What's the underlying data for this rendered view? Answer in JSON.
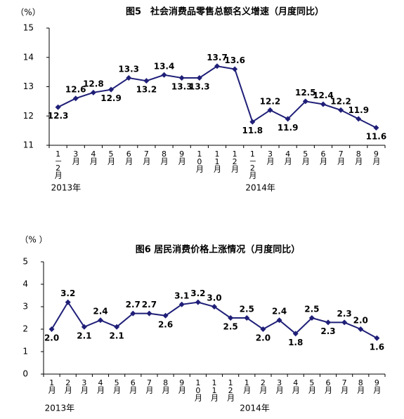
{
  "chart_data": [
    {
      "type": "line",
      "title": "图5　社会消费品零售总额名义增速（月度同比）",
      "y_unit": "（%）",
      "categories": [
        "1－2月",
        "3月",
        "4月",
        "5月",
        "6月",
        "7月",
        "8月",
        "9月",
        "10月",
        "11月",
        "12月",
        "1－2月",
        "3月",
        "4月",
        "5月",
        "6月",
        "7月",
        "8月",
        "9月"
      ],
      "year_labels": [
        "2013年",
        "2014年"
      ],
      "values": [
        12.3,
        12.6,
        12.8,
        12.9,
        13.3,
        13.2,
        13.4,
        13.3,
        13.3,
        13.7,
        13.6,
        11.8,
        12.2,
        11.9,
        12.5,
        12.4,
        12.2,
        11.9,
        11.6
      ],
      "color": "#1f1f78",
      "ylim": [
        11,
        15
      ],
      "yticks": [
        11,
        12,
        13,
        14,
        15
      ]
    },
    {
      "type": "line",
      "title": "图6 居民消费价格上涨情况（月度同比）",
      "y_unit": "（% ）",
      "categories": [
        "1月",
        "2月",
        "3月",
        "4月",
        "5月",
        "6月",
        "7月",
        "8月",
        "9月",
        "10月",
        "11月",
        "12月",
        "1月",
        "2月",
        "3月",
        "4月",
        "5月",
        "6月",
        "7月",
        "8月",
        "9月"
      ],
      "year_labels": [
        "2013年",
        "2014年"
      ],
      "values": [
        2.0,
        3.2,
        2.1,
        2.4,
        2.1,
        2.7,
        2.7,
        2.6,
        3.1,
        3.2,
        3.0,
        2.5,
        2.5,
        2.0,
        2.4,
        1.8,
        2.5,
        2.3,
        2.3,
        2.0,
        1.6
      ],
      "value_labels": [
        "2.0",
        "3.2",
        "2.1",
        "2.4",
        "2.1",
        "2.7",
        "2.7",
        "2.6",
        "3.1",
        "3.2",
        "3.0",
        "2.5",
        "2.5",
        "2.0",
        "2.4",
        "1.8",
        "2.5",
        "2.3",
        "2.3",
        "2.0",
        "1.6"
      ],
      "color": "#1f1f78",
      "ylim": [
        0,
        5
      ],
      "yticks": [
        0,
        1,
        2,
        3,
        4,
        5
      ]
    }
  ]
}
